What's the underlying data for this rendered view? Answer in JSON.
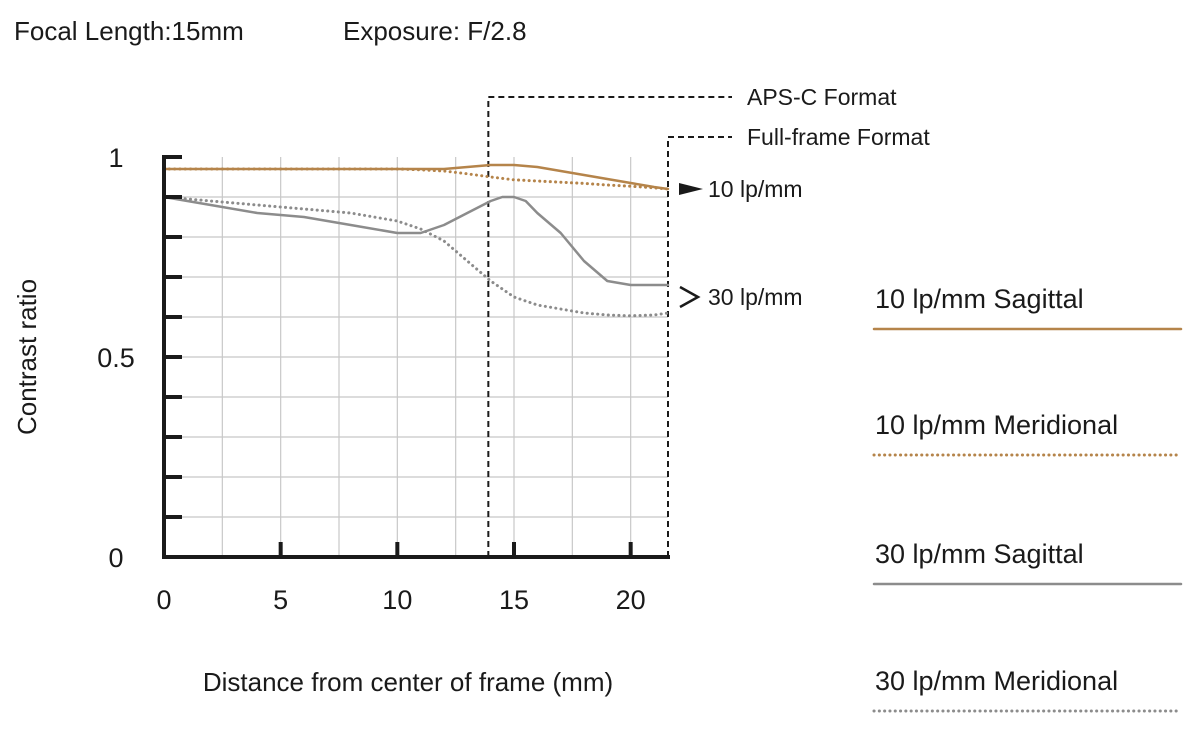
{
  "header": {
    "focal_length": "Focal Length:15mm",
    "exposure": "Exposure: F/2.8"
  },
  "chart_data": {
    "type": "line",
    "title": "",
    "xlabel": "Distance from center of frame (mm)",
    "ylabel": "Contrast ratio",
    "xlim": [
      0,
      21.6
    ],
    "ylim": [
      0,
      1
    ],
    "x_ticks": [
      {
        "value": 0,
        "label": "0"
      },
      {
        "value": 5,
        "label": "5"
      },
      {
        "value": 10,
        "label": "10"
      },
      {
        "value": 15,
        "label": "15"
      },
      {
        "value": 20,
        "label": "20"
      }
    ],
    "y_ticks": [
      {
        "value": 0,
        "label": "0"
      },
      {
        "value": 0.5,
        "label": "0.5"
      },
      {
        "value": 1,
        "label": "1"
      }
    ],
    "grid": true,
    "format_markers": [
      {
        "label": "APS-C Format",
        "x": 13.9
      },
      {
        "label": "Full-frame Format",
        "x": 21.6
      }
    ],
    "frequency_labels": [
      "10 lp/mm",
      "30 lp/mm"
    ],
    "legend_position": "right",
    "series": [
      {
        "name": "10 lp/mm Sagittal",
        "color": "#b5844a",
        "style": "solid",
        "x": [
          0,
          2,
          4,
          6,
          8,
          10,
          12,
          13,
          14,
          15,
          16,
          17,
          18,
          19,
          20,
          21,
          21.6
        ],
        "y": [
          0.97,
          0.97,
          0.97,
          0.97,
          0.97,
          0.97,
          0.97,
          0.975,
          0.98,
          0.98,
          0.975,
          0.965,
          0.955,
          0.945,
          0.935,
          0.925,
          0.92
        ]
      },
      {
        "name": "10 lp/mm Meridional",
        "color": "#b5844a",
        "style": "dotted",
        "x": [
          0,
          2,
          4,
          6,
          8,
          10,
          11,
          12,
          13,
          14,
          15,
          16,
          17,
          18,
          19,
          20,
          21,
          21.6
        ],
        "y": [
          0.97,
          0.97,
          0.97,
          0.97,
          0.97,
          0.97,
          0.968,
          0.965,
          0.958,
          0.95,
          0.943,
          0.94,
          0.937,
          0.934,
          0.93,
          0.927,
          0.923,
          0.92
        ]
      },
      {
        "name": "30 lp/mm Sagittal",
        "color": "#8c8c8c",
        "style": "solid",
        "x": [
          0,
          2,
          4,
          6,
          8,
          10,
          11,
          12,
          13,
          14,
          14.5,
          15,
          15.5,
          16,
          17,
          18,
          19,
          20,
          21,
          21.6
        ],
        "y": [
          0.9,
          0.88,
          0.86,
          0.85,
          0.83,
          0.81,
          0.81,
          0.83,
          0.86,
          0.89,
          0.9,
          0.9,
          0.89,
          0.86,
          0.81,
          0.74,
          0.69,
          0.68,
          0.68,
          0.68
        ]
      },
      {
        "name": "30 lp/mm Meridional",
        "color": "#8c8c8c",
        "style": "dotted",
        "x": [
          0,
          2,
          4,
          6,
          8,
          10,
          11,
          12,
          13,
          14,
          15,
          16,
          17,
          18,
          19,
          20,
          21,
          21.6
        ],
        "y": [
          0.9,
          0.89,
          0.88,
          0.87,
          0.86,
          0.84,
          0.82,
          0.79,
          0.74,
          0.69,
          0.65,
          0.63,
          0.62,
          0.61,
          0.605,
          0.603,
          0.605,
          0.61
        ]
      }
    ]
  }
}
